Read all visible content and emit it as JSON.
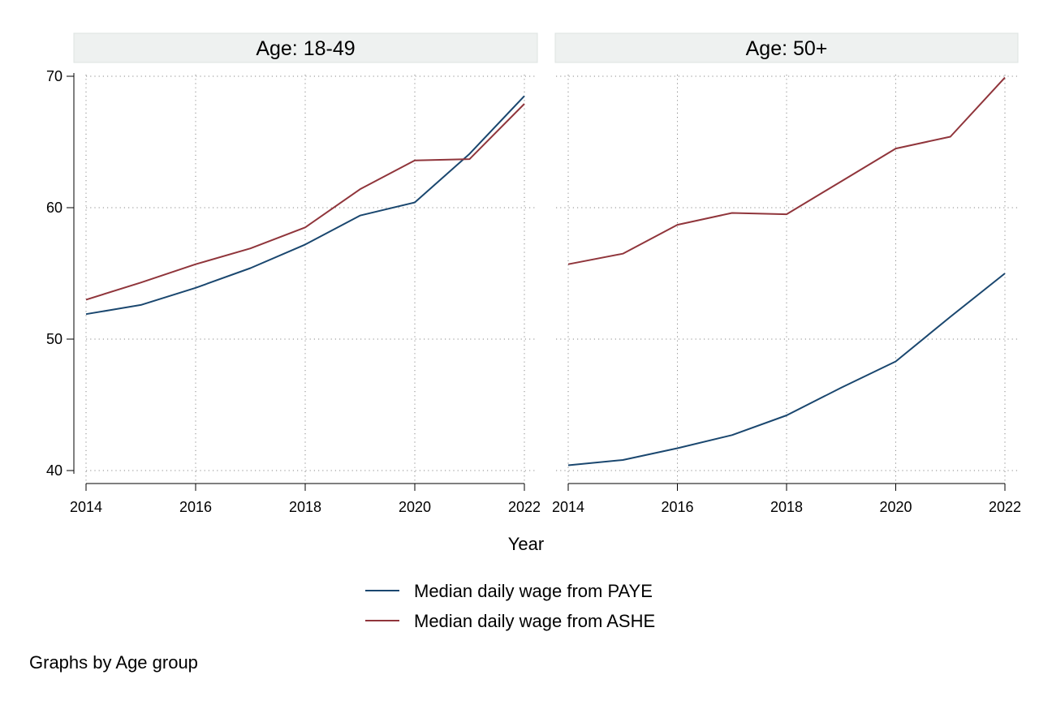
{
  "chart_data": {
    "type": "line",
    "xlabel": "Year",
    "ylabel": "",
    "note": "Graphs by Age group",
    "xlim": [
      2014,
      2022
    ],
    "ylim": [
      40,
      70
    ],
    "x_ticks": [
      2014,
      2016,
      2018,
      2020,
      2022
    ],
    "y_ticks": [
      40,
      50,
      60,
      70
    ],
    "grid": true,
    "legend_position": "bottom",
    "legend": [
      {
        "name": "Median daily wage from PAYE",
        "color": "#1a476f"
      },
      {
        "name": "Median daily wage from ASHE",
        "color": "#90353b"
      }
    ],
    "panels": [
      {
        "title": "Age: 18-49",
        "series": [
          {
            "name": "Median daily wage from PAYE",
            "color": "#1a476f",
            "x": [
              2014,
              2015,
              2016,
              2017,
              2018,
              2019,
              2020,
              2021,
              2022
            ],
            "y": [
              51.9,
              52.6,
              53.9,
              55.4,
              57.2,
              59.4,
              60.4,
              64.1,
              68.5
            ]
          },
          {
            "name": "Median daily wage from ASHE",
            "color": "#90353b",
            "x": [
              2014,
              2015,
              2016,
              2017,
              2018,
              2019,
              2020,
              2021,
              2022
            ],
            "y": [
              53.0,
              54.3,
              55.7,
              56.9,
              58.5,
              61.4,
              63.6,
              63.7,
              67.9
            ]
          }
        ]
      },
      {
        "title": "Age: 50+",
        "series": [
          {
            "name": "Median daily wage from PAYE",
            "color": "#1a476f",
            "x": [
              2014,
              2015,
              2016,
              2017,
              2018,
              2019,
              2020,
              2021,
              2022
            ],
            "y": [
              40.4,
              40.8,
              41.7,
              42.7,
              44.2,
              46.3,
              48.3,
              51.7,
              55.0
            ]
          },
          {
            "name": "Median daily wage from ASHE",
            "color": "#90353b",
            "x": [
              2014,
              2015,
              2016,
              2017,
              2018,
              2019,
              2020,
              2021,
              2022
            ],
            "y": [
              55.7,
              56.5,
              58.7,
              59.6,
              59.5,
              62.0,
              64.5,
              65.4,
              69.9
            ]
          }
        ]
      }
    ]
  }
}
